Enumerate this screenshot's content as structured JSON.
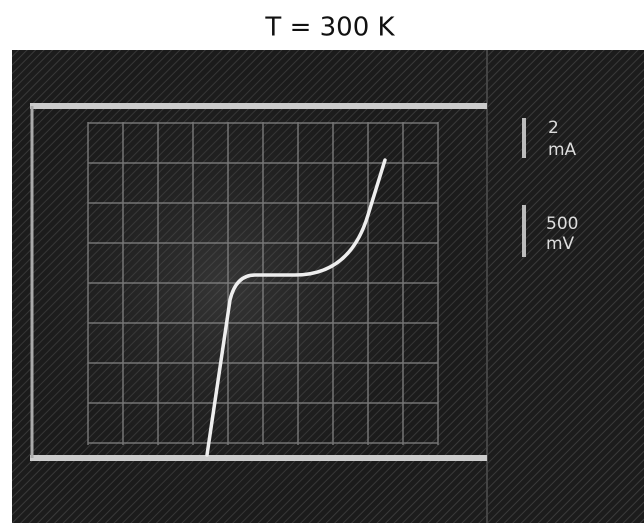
{
  "title": "T = 300 K",
  "scale_labels": [
    {
      "value": "2",
      "unit": "mA"
    },
    {
      "value": "500",
      "unit": "mV"
    }
  ]
}
